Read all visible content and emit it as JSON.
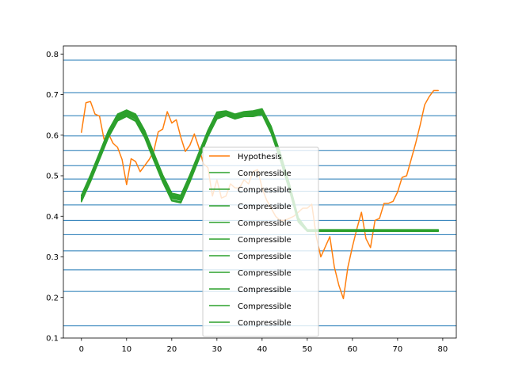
{
  "chart_data": {
    "type": "line",
    "xlim": [
      -4,
      83
    ],
    "ylim": [
      0.1,
      0.82
    ],
    "xticks": [
      0,
      10,
      20,
      30,
      40,
      50,
      60,
      70,
      80
    ],
    "xtick_labels": [
      "0",
      "10",
      "20",
      "30",
      "40",
      "50",
      "60",
      "70",
      "80"
    ],
    "yticks": [
      0.1,
      0.2,
      0.3,
      0.4,
      0.5,
      0.6,
      0.7,
      0.8
    ],
    "ytick_labels": [
      "0.1",
      "0.2",
      "0.3",
      "0.4",
      "0.5",
      "0.6",
      "0.7",
      "0.8"
    ],
    "hlines": [
      0.13,
      0.215,
      0.268,
      0.315,
      0.355,
      0.39,
      0.428,
      0.462,
      0.492,
      0.525,
      0.562,
      0.598,
      0.648,
      0.705,
      0.785
    ],
    "hline_color": "#1f77b4",
    "grid": false,
    "legend_position": "center",
    "series": [
      {
        "name": "Hypothesis",
        "color": "#ff7f0e",
        "x": [
          0,
          1,
          2,
          3,
          4,
          5,
          6,
          7,
          8,
          9,
          10,
          11,
          12,
          13,
          14,
          15,
          16,
          17,
          18,
          19,
          20,
          21,
          22,
          23,
          24,
          25,
          26,
          27,
          28,
          29,
          30,
          31,
          32,
          33,
          34,
          35,
          36,
          37,
          38,
          39,
          40,
          41,
          42,
          43,
          44,
          45,
          46,
          47,
          48,
          49,
          50,
          51,
          52,
          53,
          54,
          55,
          56,
          57,
          58,
          59,
          60,
          61,
          62,
          63,
          64,
          65,
          66,
          67,
          68,
          69,
          70,
          71,
          72,
          73,
          74,
          75,
          76,
          77,
          78,
          79
        ],
        "values": [
          0.607,
          0.68,
          0.683,
          0.652,
          0.647,
          0.59,
          0.603,
          0.58,
          0.57,
          0.54,
          0.478,
          0.542,
          0.535,
          0.51,
          0.525,
          0.54,
          0.56,
          0.608,
          0.615,
          0.658,
          0.63,
          0.638,
          0.595,
          0.56,
          0.575,
          0.603,
          0.57,
          0.53,
          0.52,
          0.45,
          0.49,
          0.445,
          0.45,
          0.48,
          0.47,
          0.47,
          0.49,
          0.48,
          0.51,
          0.515,
          0.47,
          0.44,
          0.42,
          0.4,
          0.39,
          0.39,
          0.395,
          0.4,
          0.41,
          0.42,
          0.42,
          0.43,
          0.35,
          0.3,
          0.325,
          0.35,
          0.275,
          0.23,
          0.197,
          0.275,
          0.325,
          0.37,
          0.41,
          0.345,
          0.323,
          0.39,
          0.395,
          0.432,
          0.432,
          0.437,
          0.46,
          0.496,
          0.5,
          0.54,
          0.58,
          0.625,
          0.675,
          0.695,
          0.71,
          0.71
        ]
      },
      {
        "name": "Compressible",
        "color": "#2ca02c",
        "x": [
          0,
          2,
          4,
          6,
          8,
          10,
          12,
          14,
          16,
          18,
          20,
          22,
          24,
          26,
          28,
          30,
          32,
          34,
          36,
          38,
          40,
          42,
          44,
          46,
          48,
          50,
          52,
          55,
          60,
          65,
          70,
          75,
          79
        ],
        "values": [
          0.44,
          0.49,
          0.545,
          0.6,
          0.64,
          0.652,
          0.64,
          0.6,
          0.545,
          0.49,
          0.445,
          0.44,
          0.49,
          0.545,
          0.6,
          0.645,
          0.652,
          0.645,
          0.65,
          0.65,
          0.655,
          0.61,
          0.545,
          0.47,
          0.39,
          0.365,
          0.365,
          0.365,
          0.365,
          0.365,
          0.365,
          0.365,
          0.365
        ]
      },
      {
        "name": "Compressible",
        "color": "#2ca02c",
        "x": [
          0,
          2,
          4,
          6,
          8,
          10,
          12,
          14,
          16,
          18,
          20,
          22,
          24,
          26,
          28,
          30,
          32,
          34,
          36,
          38,
          40,
          42,
          44,
          46,
          48,
          50,
          52,
          55,
          60,
          65,
          70,
          75,
          79
        ],
        "values": [
          0.445,
          0.495,
          0.55,
          0.605,
          0.645,
          0.657,
          0.645,
          0.605,
          0.55,
          0.495,
          0.45,
          0.445,
          0.495,
          0.55,
          0.605,
          0.65,
          0.655,
          0.648,
          0.653,
          0.655,
          0.66,
          0.615,
          0.55,
          0.475,
          0.392,
          0.365,
          0.365,
          0.365,
          0.365,
          0.365,
          0.365,
          0.365,
          0.365
        ]
      },
      {
        "name": "Compressible",
        "color": "#2ca02c",
        "x": [
          0,
          2,
          4,
          6,
          8,
          10,
          12,
          14,
          16,
          18,
          20,
          22,
          24,
          26,
          28,
          30,
          32,
          34,
          36,
          38,
          40,
          42,
          44,
          46,
          48,
          50,
          52,
          55,
          60,
          65,
          70,
          75,
          79
        ],
        "values": [
          0.45,
          0.5,
          0.555,
          0.61,
          0.65,
          0.66,
          0.65,
          0.61,
          0.555,
          0.5,
          0.455,
          0.45,
          0.5,
          0.555,
          0.61,
          0.655,
          0.658,
          0.65,
          0.656,
          0.658,
          0.663,
          0.62,
          0.555,
          0.48,
          0.395,
          0.366,
          0.366,
          0.366,
          0.366,
          0.366,
          0.366,
          0.366,
          0.366
        ]
      },
      {
        "name": "Compressible",
        "color": "#2ca02c",
        "x": [
          0,
          2,
          4,
          6,
          8,
          10,
          12,
          14,
          16,
          18,
          20,
          22,
          24,
          26,
          28,
          30,
          32,
          34,
          36,
          38,
          40,
          42,
          44,
          46,
          48,
          50,
          52,
          55,
          60,
          65,
          70,
          75,
          79
        ],
        "values": [
          0.438,
          0.487,
          0.542,
          0.597,
          0.637,
          0.648,
          0.636,
          0.596,
          0.54,
          0.486,
          0.44,
          0.436,
          0.486,
          0.542,
          0.598,
          0.642,
          0.65,
          0.642,
          0.648,
          0.648,
          0.653,
          0.607,
          0.542,
          0.468,
          0.388,
          0.364,
          0.364,
          0.364,
          0.364,
          0.364,
          0.364,
          0.364,
          0.364
        ]
      },
      {
        "name": "Compressible",
        "color": "#2ca02c",
        "x": [
          0,
          2,
          4,
          6,
          8,
          10,
          12,
          14,
          16,
          18,
          20,
          22,
          24,
          26,
          28,
          30,
          32,
          34,
          36,
          38,
          40,
          42,
          44,
          46,
          48,
          50,
          52,
          55,
          60,
          65,
          70,
          75,
          79
        ],
        "values": [
          0.442,
          0.492,
          0.548,
          0.602,
          0.642,
          0.654,
          0.642,
          0.602,
          0.548,
          0.492,
          0.447,
          0.442,
          0.492,
          0.548,
          0.602,
          0.647,
          0.653,
          0.646,
          0.651,
          0.652,
          0.657,
          0.612,
          0.548,
          0.472,
          0.391,
          0.365,
          0.365,
          0.365,
          0.365,
          0.365,
          0.365,
          0.365,
          0.365
        ]
      },
      {
        "name": "Compressible",
        "color": "#2ca02c",
        "x": [
          0,
          2,
          4,
          6,
          8,
          10,
          12,
          14,
          16,
          18,
          20,
          22,
          24,
          26,
          28,
          30,
          32,
          34,
          36,
          38,
          40,
          42,
          44,
          46,
          48,
          50,
          52,
          55,
          60,
          65,
          70,
          75,
          79
        ],
        "values": [
          0.447,
          0.497,
          0.552,
          0.607,
          0.647,
          0.658,
          0.647,
          0.607,
          0.552,
          0.497,
          0.452,
          0.447,
          0.497,
          0.552,
          0.607,
          0.652,
          0.656,
          0.649,
          0.654,
          0.656,
          0.661,
          0.617,
          0.552,
          0.477,
          0.393,
          0.366,
          0.366,
          0.366,
          0.366,
          0.366,
          0.366,
          0.366,
          0.366
        ]
      },
      {
        "name": "Compressible",
        "color": "#2ca02c",
        "x": [
          0,
          2,
          4,
          6,
          8,
          10,
          12,
          14,
          16,
          18,
          20,
          22,
          24,
          26,
          28,
          30,
          32,
          34,
          36,
          38,
          40,
          42,
          44,
          46,
          48,
          50,
          52,
          55,
          60,
          65,
          70,
          75,
          79
        ],
        "values": [
          0.436,
          0.485,
          0.54,
          0.595,
          0.635,
          0.646,
          0.634,
          0.594,
          0.538,
          0.484,
          0.438,
          0.433,
          0.484,
          0.54,
          0.596,
          0.64,
          0.648,
          0.64,
          0.646,
          0.646,
          0.651,
          0.605,
          0.54,
          0.466,
          0.386,
          0.363,
          0.363,
          0.363,
          0.363,
          0.363,
          0.363,
          0.363,
          0.363
        ]
      },
      {
        "name": "Compressible",
        "color": "#2ca02c",
        "x": [
          0,
          2,
          4,
          6,
          8,
          10,
          12,
          14,
          16,
          18,
          20,
          22,
          24,
          26,
          28,
          30,
          32,
          34,
          36,
          38,
          40,
          42,
          44,
          46,
          48,
          50,
          52,
          55,
          60,
          65,
          70,
          75,
          79
        ],
        "values": [
          0.452,
          0.502,
          0.557,
          0.612,
          0.652,
          0.662,
          0.652,
          0.612,
          0.557,
          0.502,
          0.457,
          0.452,
          0.502,
          0.557,
          0.612,
          0.657,
          0.66,
          0.652,
          0.658,
          0.66,
          0.665,
          0.622,
          0.557,
          0.482,
          0.397,
          0.367,
          0.367,
          0.367,
          0.367,
          0.367,
          0.367,
          0.367,
          0.367
        ]
      },
      {
        "name": "Compressible",
        "color": "#2ca02c",
        "x": [
          0,
          2,
          4,
          6,
          8,
          10,
          12,
          14,
          16,
          18,
          20,
          22,
          24,
          26,
          28,
          30,
          32,
          34,
          36,
          38,
          40,
          42,
          44,
          46,
          48,
          50,
          52,
          55,
          60,
          65,
          70,
          75,
          79
        ],
        "values": [
          0.44,
          0.49,
          0.546,
          0.6,
          0.64,
          0.651,
          0.64,
          0.6,
          0.546,
          0.49,
          0.444,
          0.44,
          0.49,
          0.546,
          0.6,
          0.644,
          0.651,
          0.644,
          0.649,
          0.65,
          0.654,
          0.61,
          0.546,
          0.47,
          0.389,
          0.364,
          0.364,
          0.364,
          0.364,
          0.364,
          0.364,
          0.364,
          0.364
        ]
      },
      {
        "name": "Compressible",
        "color": "#2ca02c",
        "x": [
          0,
          2,
          4,
          6,
          8,
          10,
          12,
          14,
          16,
          18,
          20,
          22,
          24,
          26,
          28,
          30,
          32,
          34,
          36,
          38,
          40,
          42,
          44,
          46,
          48,
          50,
          52,
          55,
          60,
          65,
          70,
          75,
          79
        ],
        "values": [
          0.444,
          0.494,
          0.55,
          0.604,
          0.644,
          0.655,
          0.644,
          0.604,
          0.55,
          0.494,
          0.449,
          0.444,
          0.494,
          0.55,
          0.604,
          0.649,
          0.654,
          0.647,
          0.652,
          0.653,
          0.658,
          0.614,
          0.55,
          0.474,
          0.392,
          0.365,
          0.365,
          0.365,
          0.365,
          0.365,
          0.365,
          0.365,
          0.365
        ]
      }
    ]
  }
}
